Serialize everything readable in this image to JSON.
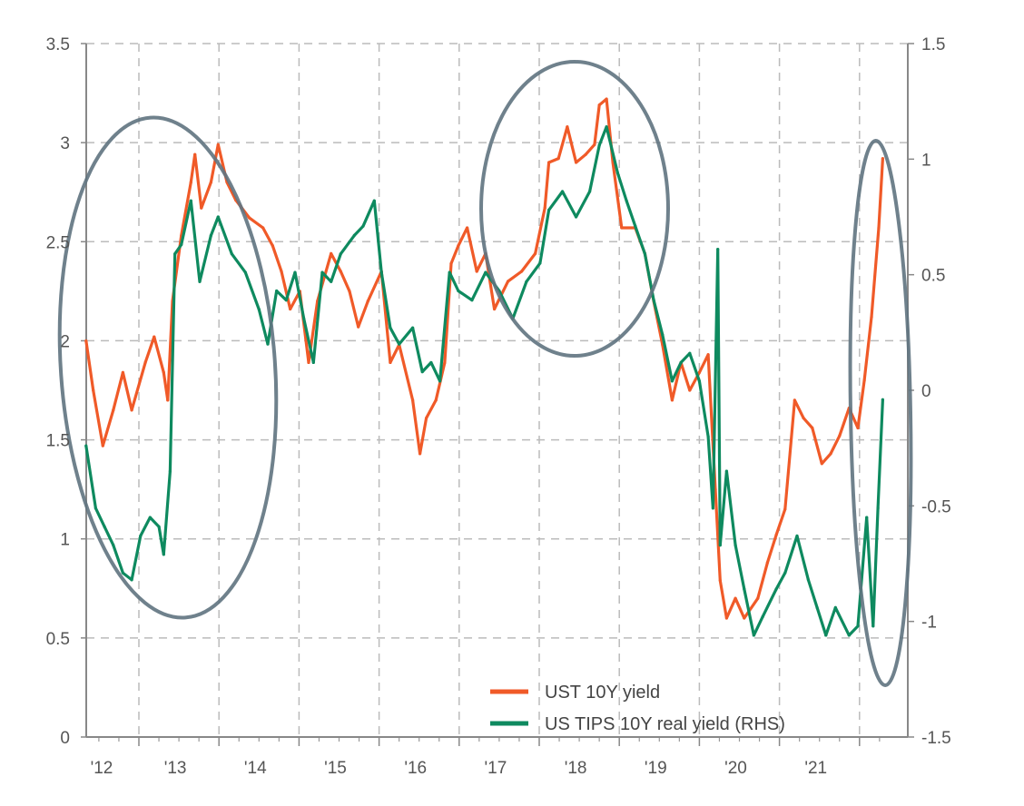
{
  "chart_data": {
    "type": "line",
    "title": "",
    "xlabel": "",
    "ylabel_left": "",
    "ylabel_right": "",
    "xlim": [
      2012.34,
      2022.35
    ],
    "ylim_left": [
      0,
      3.5
    ],
    "ylim_right": [
      -1.5,
      1.5
    ],
    "grid": true,
    "legend_position": "bottom-right",
    "x_tick_labels": [
      {
        "year": 2012,
        "label": "'12"
      },
      {
        "year": 2013,
        "label": "'13"
      },
      {
        "year": 2014,
        "label": "'14"
      },
      {
        "year": 2015,
        "label": "'15"
      },
      {
        "year": 2016,
        "label": "'16"
      },
      {
        "year": 2017,
        "label": "'17"
      },
      {
        "year": 2018,
        "label": "'18"
      },
      {
        "year": 2019,
        "label": "'19"
      },
      {
        "year": 2020,
        "label": "'20"
      },
      {
        "year": 2021,
        "label": "'21"
      }
    ],
    "y_left_ticks": [
      {
        "value": 0,
        "label": "0"
      },
      {
        "value": 0.5,
        "label": "0.5"
      },
      {
        "value": 1,
        "label": "1"
      },
      {
        "value": 1.5,
        "label": "1.5"
      },
      {
        "value": 2,
        "label": "2"
      },
      {
        "value": 2.5,
        "label": "2.5"
      },
      {
        "value": 3,
        "label": "3"
      },
      {
        "value": 3.5,
        "label": "3.5"
      }
    ],
    "y_right_ticks": [
      {
        "value": -1.5,
        "label": "-1.5"
      },
      {
        "value": -1,
        "label": "-1"
      },
      {
        "value": -0.5,
        "label": "-0.5"
      },
      {
        "value": 0,
        "label": "0"
      },
      {
        "value": 0.5,
        "label": "0.5"
      },
      {
        "value": 1,
        "label": "1"
      },
      {
        "value": 1.5,
        "label": "1.5"
      }
    ],
    "series": [
      {
        "name": "UST 10Y yield",
        "axis": "left",
        "color": "#f05a28",
        "points": [
          [
            2012.34,
            2.0
          ],
          [
            2012.43,
            1.75
          ],
          [
            2012.55,
            1.47
          ],
          [
            2012.68,
            1.65
          ],
          [
            2012.8,
            1.84
          ],
          [
            2012.91,
            1.65
          ],
          [
            2013.08,
            1.89
          ],
          [
            2013.19,
            2.02
          ],
          [
            2013.31,
            1.84
          ],
          [
            2013.36,
            1.7
          ],
          [
            2013.42,
            2.2
          ],
          [
            2013.53,
            2.53
          ],
          [
            2013.65,
            2.8
          ],
          [
            2013.7,
            2.94
          ],
          [
            2013.78,
            2.67
          ],
          [
            2013.9,
            2.8
          ],
          [
            2013.99,
            2.99
          ],
          [
            2014.1,
            2.8
          ],
          [
            2014.21,
            2.71
          ],
          [
            2014.38,
            2.62
          ],
          [
            2014.55,
            2.57
          ],
          [
            2014.67,
            2.48
          ],
          [
            2014.78,
            2.35
          ],
          [
            2014.89,
            2.16
          ],
          [
            2015.01,
            2.25
          ],
          [
            2015.12,
            1.89
          ],
          [
            2015.23,
            2.2
          ],
          [
            2015.4,
            2.44
          ],
          [
            2015.52,
            2.35
          ],
          [
            2015.63,
            2.25
          ],
          [
            2015.74,
            2.07
          ],
          [
            2015.86,
            2.2
          ],
          [
            2016.03,
            2.35
          ],
          [
            2016.14,
            1.89
          ],
          [
            2016.25,
            1.98
          ],
          [
            2016.42,
            1.7
          ],
          [
            2016.51,
            1.43
          ],
          [
            2016.59,
            1.61
          ],
          [
            2016.71,
            1.7
          ],
          [
            2016.82,
            1.89
          ],
          [
            2016.9,
            2.39
          ],
          [
            2016.99,
            2.48
          ],
          [
            2017.1,
            2.57
          ],
          [
            2017.22,
            2.35
          ],
          [
            2017.33,
            2.44
          ],
          [
            2017.44,
            2.16
          ],
          [
            2017.61,
            2.3
          ],
          [
            2017.78,
            2.35
          ],
          [
            2017.95,
            2.44
          ],
          [
            2018.07,
            2.67
          ],
          [
            2018.12,
            2.9
          ],
          [
            2018.24,
            2.92
          ],
          [
            2018.35,
            3.08
          ],
          [
            2018.46,
            2.9
          ],
          [
            2018.58,
            2.94
          ],
          [
            2018.69,
            2.99
          ],
          [
            2018.75,
            3.19
          ],
          [
            2018.84,
            3.22
          ],
          [
            2018.92,
            2.9
          ],
          [
            2019.03,
            2.57
          ],
          [
            2019.2,
            2.57
          ],
          [
            2019.32,
            2.44
          ],
          [
            2019.43,
            2.2
          ],
          [
            2019.54,
            1.98
          ],
          [
            2019.66,
            1.7
          ],
          [
            2019.77,
            1.89
          ],
          [
            2019.88,
            1.75
          ],
          [
            2020.0,
            1.84
          ],
          [
            2020.11,
            1.93
          ],
          [
            2020.2,
            1.25
          ],
          [
            2020.26,
            0.79
          ],
          [
            2020.34,
            0.6
          ],
          [
            2020.45,
            0.7
          ],
          [
            2020.56,
            0.6
          ],
          [
            2020.73,
            0.7
          ],
          [
            2020.85,
            0.88
          ],
          [
            2020.96,
            1.02
          ],
          [
            2021.07,
            1.15
          ],
          [
            2021.19,
            1.7
          ],
          [
            2021.3,
            1.61
          ],
          [
            2021.41,
            1.56
          ],
          [
            2021.53,
            1.38
          ],
          [
            2021.64,
            1.43
          ],
          [
            2021.75,
            1.52
          ],
          [
            2021.87,
            1.66
          ],
          [
            2021.98,
            1.56
          ],
          [
            2022.06,
            1.8
          ],
          [
            2022.15,
            2.12
          ],
          [
            2022.24,
            2.57
          ],
          [
            2022.29,
            2.92
          ]
        ]
      },
      {
        "name": "US TIPS 10Y real yield (RHS)",
        "axis": "right",
        "color": "#0e8a5f",
        "points": [
          [
            2012.34,
            -0.24
          ],
          [
            2012.46,
            -0.51
          ],
          [
            2012.57,
            -0.59
          ],
          [
            2012.68,
            -0.67
          ],
          [
            2012.8,
            -0.79
          ],
          [
            2012.91,
            -0.82
          ],
          [
            2013.02,
            -0.63
          ],
          [
            2013.14,
            -0.55
          ],
          [
            2013.25,
            -0.59
          ],
          [
            2013.31,
            -0.71
          ],
          [
            2013.39,
            -0.35
          ],
          [
            2013.45,
            0.59
          ],
          [
            2013.53,
            0.63
          ],
          [
            2013.65,
            0.82
          ],
          [
            2013.76,
            0.47
          ],
          [
            2013.9,
            0.67
          ],
          [
            2013.99,
            0.75
          ],
          [
            2014.16,
            0.59
          ],
          [
            2014.33,
            0.51
          ],
          [
            2014.5,
            0.35
          ],
          [
            2014.61,
            0.2
          ],
          [
            2014.72,
            0.43
          ],
          [
            2014.84,
            0.39
          ],
          [
            2014.95,
            0.51
          ],
          [
            2015.06,
            0.31
          ],
          [
            2015.18,
            0.12
          ],
          [
            2015.29,
            0.51
          ],
          [
            2015.4,
            0.47
          ],
          [
            2015.52,
            0.59
          ],
          [
            2015.69,
            0.67
          ],
          [
            2015.8,
            0.71
          ],
          [
            2015.94,
            0.82
          ],
          [
            2016.03,
            0.51
          ],
          [
            2016.14,
            0.27
          ],
          [
            2016.25,
            0.2
          ],
          [
            2016.42,
            0.27
          ],
          [
            2016.54,
            0.08
          ],
          [
            2016.65,
            0.12
          ],
          [
            2016.76,
            0.04
          ],
          [
            2016.88,
            0.51
          ],
          [
            2016.99,
            0.43
          ],
          [
            2017.16,
            0.39
          ],
          [
            2017.33,
            0.51
          ],
          [
            2017.5,
            0.43
          ],
          [
            2017.67,
            0.31
          ],
          [
            2017.84,
            0.47
          ],
          [
            2018.01,
            0.55
          ],
          [
            2018.12,
            0.78
          ],
          [
            2018.29,
            0.86
          ],
          [
            2018.46,
            0.75
          ],
          [
            2018.63,
            0.86
          ],
          [
            2018.75,
            1.06
          ],
          [
            2018.84,
            1.14
          ],
          [
            2018.98,
            0.94
          ],
          [
            2019.09,
            0.82
          ],
          [
            2019.2,
            0.71
          ],
          [
            2019.32,
            0.59
          ],
          [
            2019.43,
            0.39
          ],
          [
            2019.54,
            0.24
          ],
          [
            2019.66,
            0.04
          ],
          [
            2019.77,
            0.12
          ],
          [
            2019.88,
            0.16
          ],
          [
            2020.0,
            0.04
          ],
          [
            2020.11,
            -0.2
          ],
          [
            2020.17,
            -0.51
          ],
          [
            2020.23,
            0.61
          ],
          [
            2020.26,
            -0.67
          ],
          [
            2020.34,
            -0.35
          ],
          [
            2020.45,
            -0.67
          ],
          [
            2020.56,
            -0.86
          ],
          [
            2020.68,
            -1.06
          ],
          [
            2020.79,
            -0.98
          ],
          [
            2020.96,
            -0.86
          ],
          [
            2021.07,
            -0.79
          ],
          [
            2021.22,
            -0.63
          ],
          [
            2021.36,
            -0.82
          ],
          [
            2021.47,
            -0.94
          ],
          [
            2021.58,
            -1.06
          ],
          [
            2021.7,
            -0.94
          ],
          [
            2021.87,
            -1.06
          ],
          [
            2021.98,
            -1.02
          ],
          [
            2022.09,
            -0.55
          ],
          [
            2022.17,
            -1.02
          ],
          [
            2022.23,
            -0.51
          ],
          [
            2022.29,
            -0.04
          ]
        ]
      }
    ]
  }
}
